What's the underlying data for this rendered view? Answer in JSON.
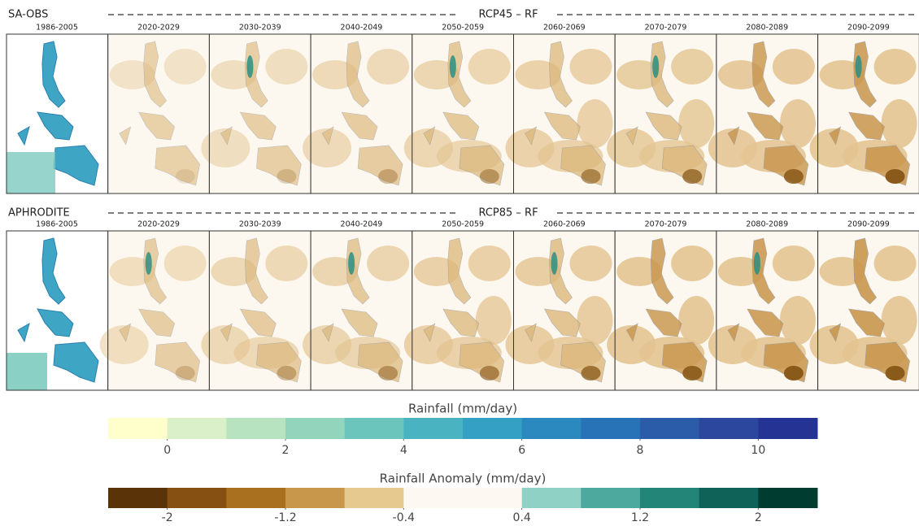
{
  "rows": [
    {
      "reference": "SA-OBS",
      "reference_period": "1986-2005",
      "scenario": "RCP45 – RF",
      "periods": [
        "2020-2029",
        "2030-2039",
        "2040-2049",
        "2050-2059",
        "2060-2069",
        "2070-2079",
        "2080-2089",
        "2090-2099"
      ]
    },
    {
      "reference": "APHRODITE",
      "reference_period": "1986-2005",
      "scenario": "RCP85 – RF",
      "periods": [
        "2020-2029",
        "2030-2039",
        "2040-2049",
        "2050-2059",
        "2060-2069",
        "2070-2079",
        "2080-2089",
        "2090-2099"
      ]
    }
  ],
  "colorbars": [
    {
      "title": "Rainfall (mm/day)",
      "xlim": [
        -1,
        11
      ],
      "ticks": [
        0,
        2,
        4,
        6,
        8,
        10
      ],
      "colors": [
        "#ffffcc",
        "#d9f0c8",
        "#b7e3c0",
        "#93d4bd",
        "#6cc5bd",
        "#4ab3c1",
        "#34a0c4",
        "#2b89c0",
        "#2872b7",
        "#2a5caa",
        "#2b479e",
        "#253494"
      ]
    },
    {
      "title": "Rainfall Anomaly (mm/day)",
      "xlim": [
        -2.4,
        2.4
      ],
      "ticks": [
        -2,
        -1.2,
        -0.4,
        0.4,
        1.2,
        2
      ],
      "colors": [
        "#5a3408",
        "#855011",
        "#a8701f",
        "#c8974b",
        "#e6c98f",
        "#fdf9f2",
        "#fdf9f2",
        "#8fd1c4",
        "#4da99e",
        "#238478",
        "#0e6258",
        "#003d30"
      ]
    }
  ]
}
